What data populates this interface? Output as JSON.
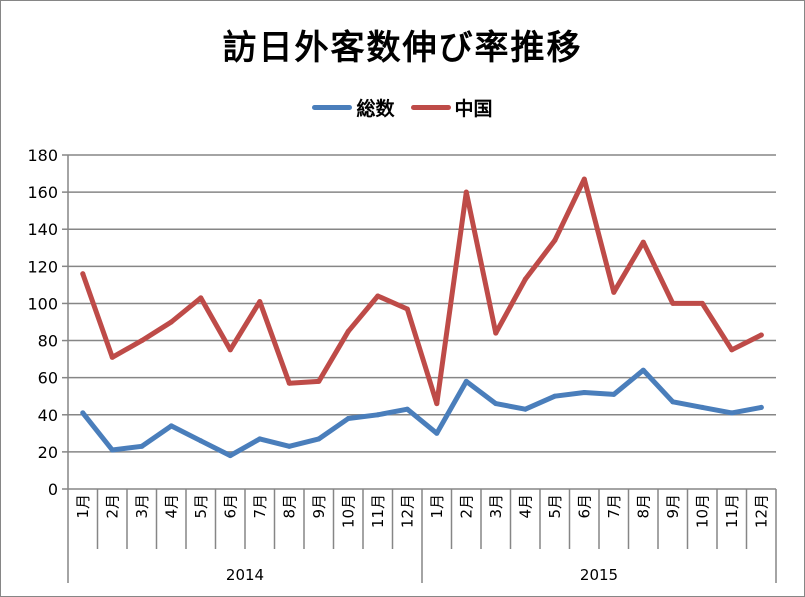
{
  "chart_data": {
    "type": "line",
    "title": "訪日外客数伸び率推移",
    "x": [
      "1月",
      "2月",
      "3月",
      "4月",
      "5月",
      "6月",
      "7月",
      "8月",
      "9月",
      "10月",
      "11月",
      "12月",
      "1月",
      "2月",
      "3月",
      "4月",
      "5月",
      "6月",
      "7月",
      "8月",
      "9月",
      "10月",
      "11月",
      "12月"
    ],
    "years": [
      "2014",
      "2015"
    ],
    "series": [
      {
        "name": "総数",
        "color": "#4a7ebb",
        "values": [
          41,
          21,
          23,
          34,
          26,
          18,
          27,
          23,
          27,
          38,
          40,
          43,
          30,
          58,
          46,
          43,
          50,
          52,
          51,
          64,
          47,
          44,
          41,
          44
        ]
      },
      {
        "name": "中国",
        "color": "#be4b48",
        "values": [
          116,
          71,
          80,
          90,
          103,
          75,
          101,
          57,
          58,
          85,
          104,
          97,
          46,
          160,
          84,
          113,
          134,
          167,
          106,
          133,
          100,
          100,
          75,
          83
        ]
      }
    ],
    "yticks": [
      0,
      20,
      40,
      60,
      80,
      100,
      120,
      140,
      160,
      180
    ],
    "ylim": [
      0,
      180
    ],
    "grid": true,
    "legend_position": "top"
  }
}
